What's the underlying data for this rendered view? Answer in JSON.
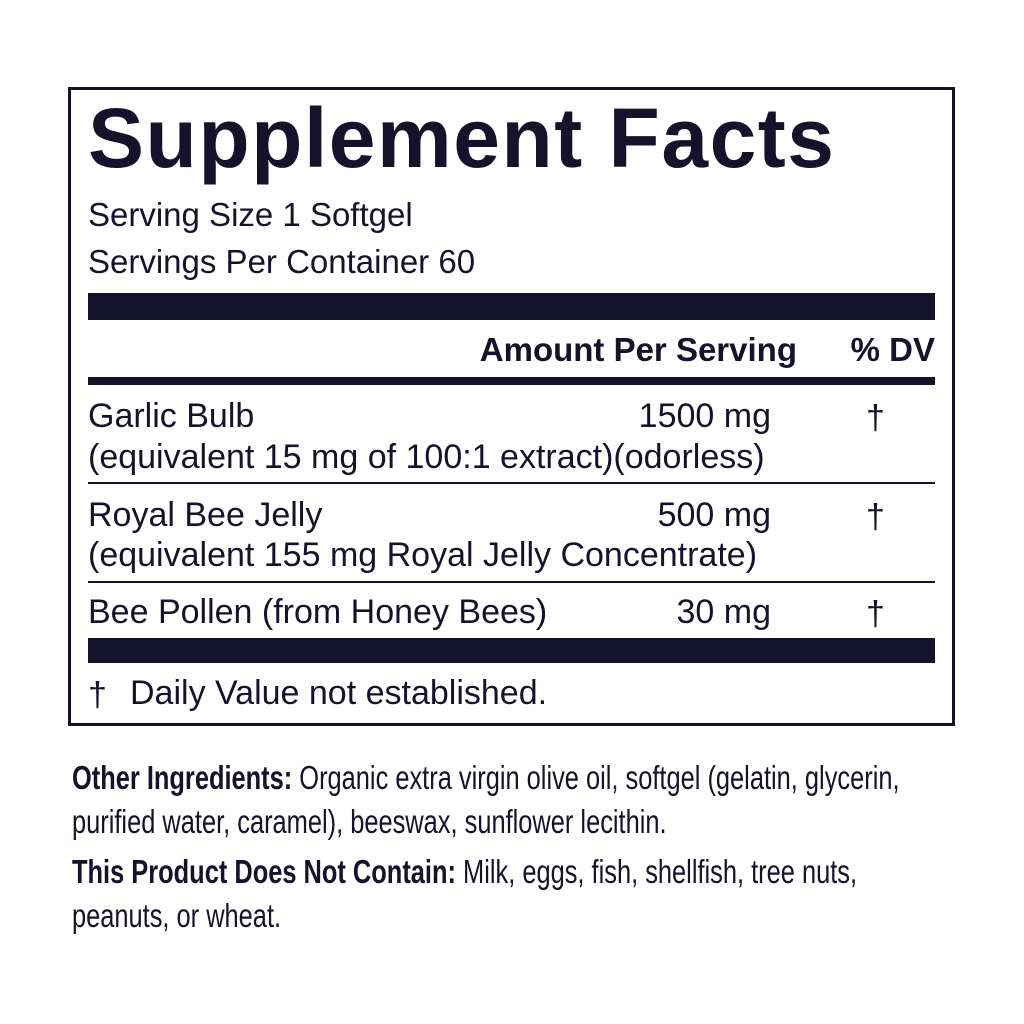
{
  "title": "Supplement Facts",
  "serving_size": "Serving Size 1 Softgel",
  "servings_per_container": "Servings Per Container 60",
  "header": {
    "amount": "Amount Per Serving",
    "dv": "% DV"
  },
  "rows": [
    {
      "name": "Garlic Bulb",
      "detail": "(equivalent 15 mg of 100:1 extract)(odorless)",
      "amount": "1500 mg",
      "dv": "†"
    },
    {
      "name": "Royal Bee Jelly",
      "detail": "(equivalent 155 mg Royal Jelly Concentrate)",
      "amount": "500 mg",
      "dv": "†"
    },
    {
      "name": "Bee Pollen (from Honey Bees)",
      "amount": "30 mg",
      "dv": "†"
    }
  ],
  "footnote": {
    "symbol": "†",
    "text": "Daily Value not established."
  },
  "other_ingredients": {
    "label": "Other Ingredients:",
    "text": "Organic extra virgin olive oil, softgel (gelatin, glycerin, purified water, caramel), beeswax, sunflower lecithin."
  },
  "does_not_contain": {
    "label": "This Product Does Not Contain:",
    "text": "Milk, eggs, fish, shellfish, tree nuts, peanuts, or wheat."
  }
}
